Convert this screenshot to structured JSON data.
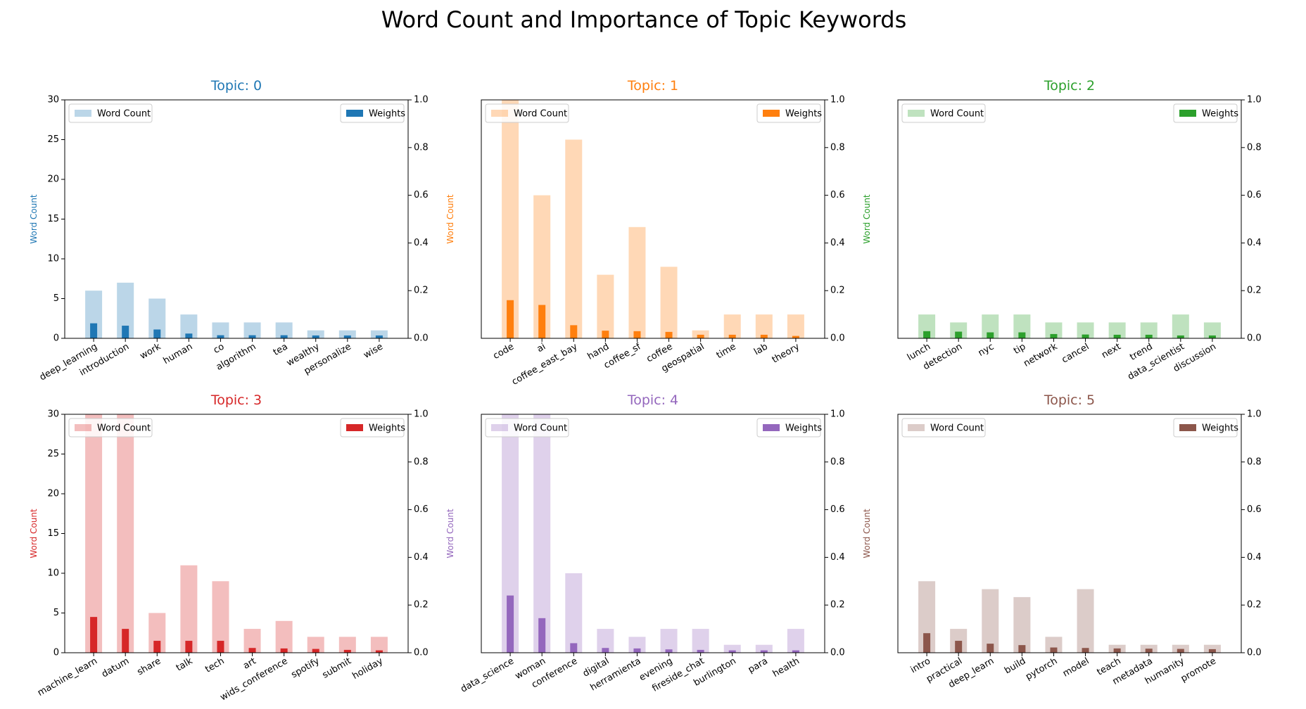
{
  "figure_title": "Word Count and Importance of Topic Keywords",
  "legend_labels": {
    "count": "Word Count",
    "weight": "Weights"
  },
  "chart_data": [
    {
      "type": "bar",
      "title": "Topic: 0",
      "color": "#1f77b4",
      "ylabel": "Word Count",
      "ylim": [
        0,
        30
      ],
      "ylim_right": [
        0,
        1.0
      ],
      "yticks": [
        0,
        5,
        10,
        15,
        20,
        25,
        30
      ],
      "yticks_right": [
        0.0,
        0.2,
        0.4,
        0.6,
        0.8,
        1.0
      ],
      "legend_placement": [
        "top-left",
        "top-right"
      ],
      "categories": [
        "deep_learning",
        "introduction",
        "work",
        "human",
        "co",
        "algorithm",
        "tea",
        "wealthy",
        "personalize",
        "wise"
      ],
      "series": [
        {
          "name": "Word Count",
          "axis": "left",
          "values": [
            6,
            7,
            5,
            3,
            2,
            2,
            2,
            1,
            1,
            1
          ]
        },
        {
          "name": "Weights",
          "axis": "right",
          "values": [
            0.063,
            0.053,
            0.037,
            0.02,
            0.013,
            0.013,
            0.013,
            0.012,
            0.012,
            0.012
          ]
        }
      ]
    },
    {
      "type": "bar",
      "title": "Topic: 1",
      "color": "#ff7f0e",
      "ylabel": "Word Count",
      "ylim": [
        0,
        30
      ],
      "ylim_right": [
        0,
        1.0
      ],
      "yticks": [],
      "yticks_right": [
        0.0,
        0.2,
        0.4,
        0.6,
        0.8,
        1.0
      ],
      "legend_placement": [
        "top-left",
        "top-right"
      ],
      "categories": [
        "code",
        "ai",
        "coffee_east_bay",
        "hand",
        "coffee_sf",
        "coffee",
        "geospatial",
        "time",
        "lab",
        "theory"
      ],
      "series": [
        {
          "name": "Word Count",
          "axis": "left",
          "values": [
            30,
            18,
            25,
            8,
            14,
            9,
            1,
            3,
            3,
            3
          ]
        },
        {
          "name": "Weights",
          "axis": "right",
          "values": [
            0.16,
            0.14,
            0.055,
            0.032,
            0.03,
            0.027,
            0.015,
            0.015,
            0.015,
            0.01
          ]
        }
      ]
    },
    {
      "type": "bar",
      "title": "Topic: 2",
      "color": "#2ca02c",
      "ylabel": "Word Count",
      "ylim": [
        0,
        30
      ],
      "ylim_right": [
        0,
        1.0
      ],
      "yticks": [],
      "yticks_right": [
        0.0,
        0.2,
        0.4,
        0.6,
        0.8,
        1.0
      ],
      "legend_placement": [
        "top-left",
        "top-right"
      ],
      "categories": [
        "lunch",
        "detection",
        "nyc",
        "tip",
        "network",
        "cancel",
        "next",
        "trend",
        "data_scientist",
        "discussion"
      ],
      "series": [
        {
          "name": "Word Count",
          "axis": "left",
          "values": [
            3,
            2,
            3,
            3,
            2,
            2,
            2,
            2,
            3,
            2
          ]
        },
        {
          "name": "Weights",
          "axis": "right",
          "values": [
            0.03,
            0.028,
            0.025,
            0.025,
            0.018,
            0.016,
            0.015,
            0.015,
            0.012,
            0.012
          ]
        }
      ]
    },
    {
      "type": "bar",
      "title": "Topic: 3",
      "color": "#d62728",
      "ylabel": "Word Count",
      "ylim": [
        0,
        30
      ],
      "ylim_right": [
        0,
        1.0
      ],
      "yticks": [
        0,
        5,
        10,
        15,
        20,
        25,
        30
      ],
      "yticks_right": [
        0.0,
        0.2,
        0.4,
        0.6,
        0.8,
        1.0
      ],
      "legend_placement": [
        "top-left",
        "top-right"
      ],
      "categories": [
        "machine_learn",
        "datum",
        "share",
        "talk",
        "tech",
        "art",
        "wids_conference",
        "spotify",
        "submit",
        "holiday"
      ],
      "series": [
        {
          "name": "Word Count",
          "axis": "left",
          "values": [
            30,
            30,
            5,
            11,
            9,
            3,
            4,
            2,
            2,
            2
          ]
        },
        {
          "name": "Weights",
          "axis": "right",
          "values": [
            0.15,
            0.1,
            0.05,
            0.05,
            0.05,
            0.02,
            0.018,
            0.016,
            0.012,
            0.01
          ]
        }
      ]
    },
    {
      "type": "bar",
      "title": "Topic: 4",
      "color": "#9467bd",
      "ylabel": "Word Count",
      "ylim": [
        0,
        30
      ],
      "ylim_right": [
        0,
        1.0
      ],
      "yticks": [],
      "yticks_right": [
        0.0,
        0.2,
        0.4,
        0.6,
        0.8,
        1.0
      ],
      "legend_placement": [
        "top-left",
        "top-right"
      ],
      "categories": [
        "data_science",
        "woman",
        "conference",
        "digital",
        "herramienta",
        "evening",
        "fireside_chat",
        "burlington",
        "para",
        "health"
      ],
      "series": [
        {
          "name": "Word Count",
          "axis": "left",
          "values": [
            30,
            30,
            10,
            3,
            2,
            3,
            3,
            1,
            1,
            3
          ]
        },
        {
          "name": "Weights",
          "axis": "right",
          "values": [
            0.24,
            0.145,
            0.04,
            0.02,
            0.018,
            0.014,
            0.012,
            0.01,
            0.01,
            0.01
          ]
        }
      ]
    },
    {
      "type": "bar",
      "title": "Topic: 5",
      "color": "#8c564b",
      "ylabel": "Word Count",
      "ylim": [
        0,
        30
      ],
      "ylim_right": [
        0,
        1.0
      ],
      "yticks": [],
      "yticks_right": [
        0.0,
        0.2,
        0.4,
        0.6,
        0.8,
        1.0
      ],
      "legend_placement": [
        "top-left",
        "top-right"
      ],
      "categories": [
        "intro",
        "practical",
        "deep_learn",
        "build",
        "pytorch",
        "model",
        "teach",
        "metadata",
        "humanity",
        "promote"
      ],
      "series": [
        {
          "name": "Word Count",
          "axis": "left",
          "values": [
            9,
            3,
            8,
            7,
            2,
            8,
            1,
            1,
            1,
            1
          ]
        },
        {
          "name": "Weights",
          "axis": "right",
          "values": [
            0.082,
            0.05,
            0.038,
            0.032,
            0.022,
            0.02,
            0.018,
            0.017,
            0.016,
            0.015
          ]
        }
      ]
    }
  ]
}
